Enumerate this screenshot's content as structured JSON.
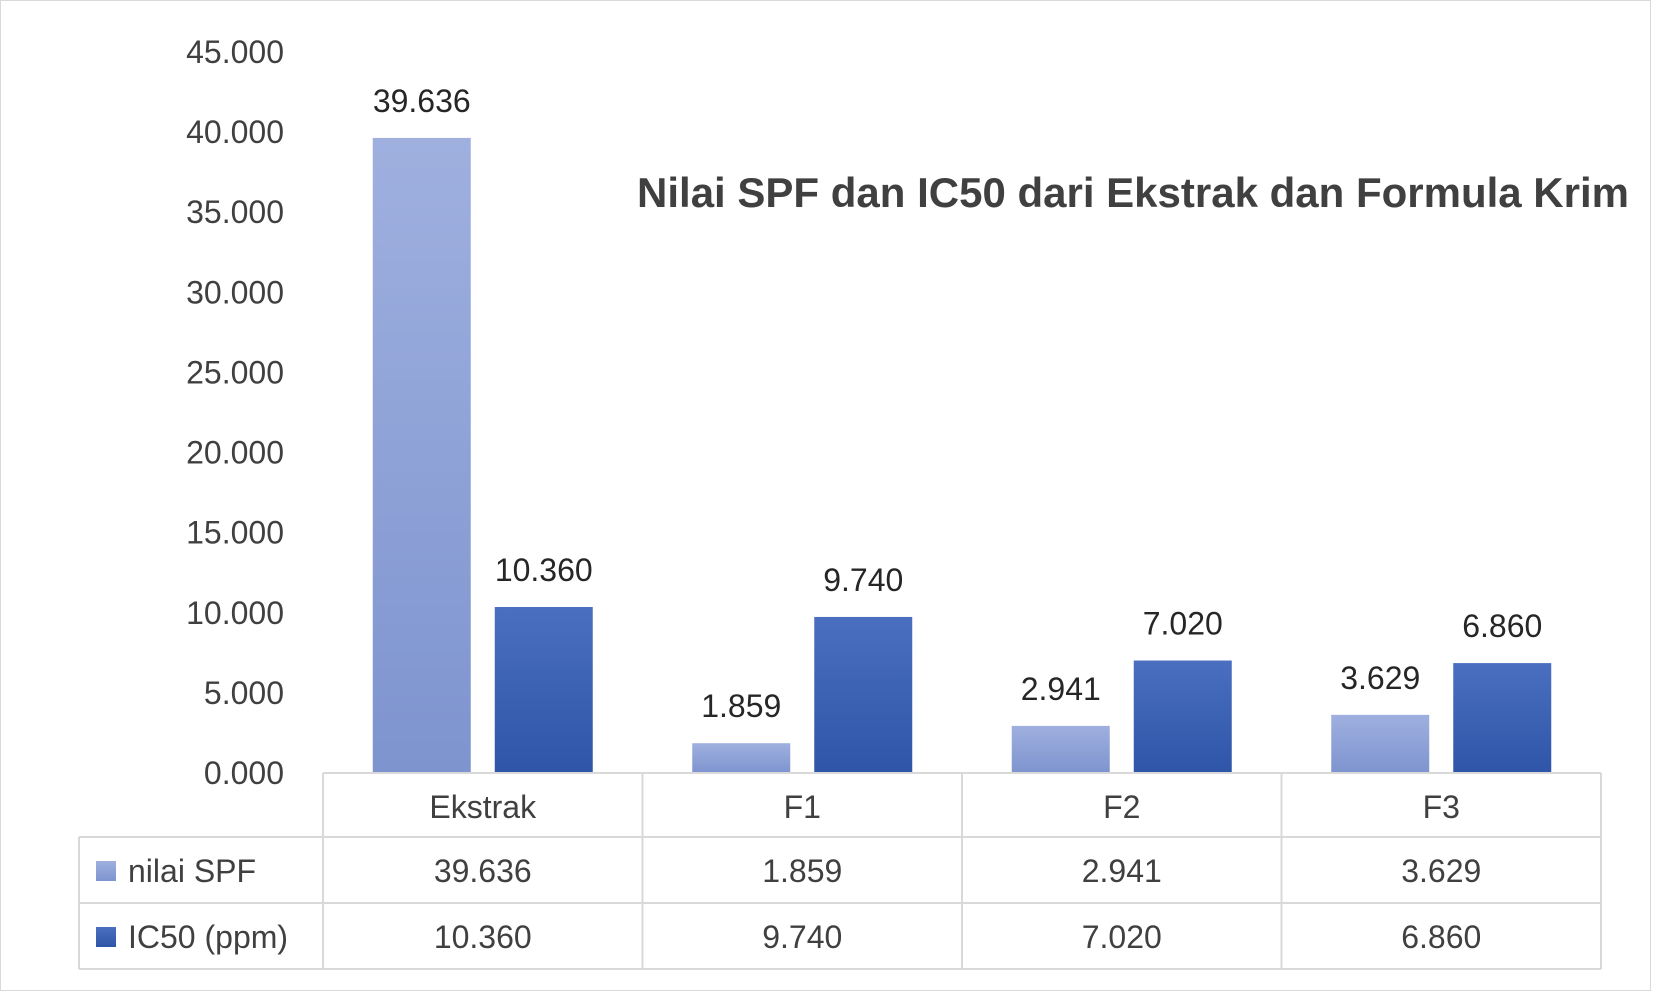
{
  "chart_data": {
    "type": "bar",
    "title": "Nilai SPF dan IC50 dari Ekstrak dan Formula Krim",
    "categories": [
      "Ekstrak",
      "F1",
      "F2",
      "F3"
    ],
    "series": [
      {
        "name": "nilai SPF",
        "values": [
          39.636,
          1.859,
          2.941,
          3.629
        ],
        "labels": [
          "39.636",
          "1.859",
          "2.941",
          "3.629"
        ],
        "color": "#8fa3d8"
      },
      {
        "name": "IC50 (ppm)",
        "values": [
          10.36,
          9.74,
          7.02,
          6.86
        ],
        "labels": [
          "10.360",
          "9.740",
          "7.020",
          "6.860"
        ],
        "color": "#3a62b5"
      }
    ],
    "ylim": [
      0,
      45
    ],
    "ytick_labels": [
      "0.000",
      "5.000",
      "10.000",
      "15.000",
      "20.000",
      "25.000",
      "30.000",
      "35.000",
      "40.000",
      "45.000"
    ],
    "grid": false,
    "legend": "data-table"
  }
}
